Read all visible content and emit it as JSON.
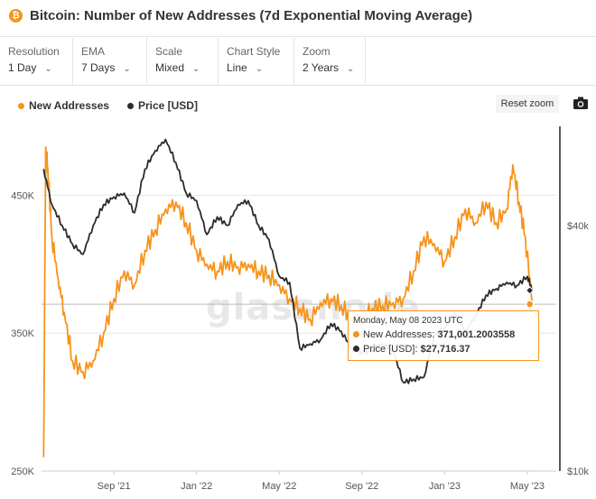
{
  "header": {
    "logo_glyph": "₿",
    "title": "Bitcoin: Number of New Addresses (7d Exponential Moving Average)"
  },
  "controls": [
    {
      "label": "Resolution",
      "value": "1 Day"
    },
    {
      "label": "EMA",
      "value": "7 Days"
    },
    {
      "label": "Scale",
      "value": "Mixed"
    },
    {
      "label": "Chart Style",
      "value": "Line"
    },
    {
      "label": "Zoom",
      "value": "2 Years"
    }
  ],
  "toolbar": {
    "reset_zoom": "Reset zoom",
    "camera_icon": "camera-icon"
  },
  "watermark": "glassnode",
  "colors": {
    "new_addresses": "#f7931a",
    "price": "#2b2b2b",
    "grid": "#e6e6e6",
    "tooltip_border": "#f7931a"
  },
  "tooltip": {
    "date": "Monday, May 08 2023 UTC",
    "rows": [
      {
        "label": "New Addresses:",
        "value": "371,001.2003558"
      },
      {
        "label": "Price [USD]:",
        "value": "$27,716.37"
      }
    ]
  },
  "chart_data": {
    "type": "line",
    "title": "Bitcoin: Number of New Addresses (7d Exponential Moving Average)",
    "legend_placement": "top-left",
    "grid": true,
    "x_ticks": [
      "Sep '21",
      "Jan '22",
      "May '22",
      "Sep '22",
      "Jan '23",
      "May '23"
    ],
    "x_tick_months": [
      3,
      7,
      11,
      15,
      19,
      23
    ],
    "xlim_months": [
      -0.5,
      24.4
    ],
    "y_left": {
      "ticks": [
        250000,
        350000,
        450000
      ],
      "tick_labels": [
        "250K",
        "350K",
        "450K"
      ],
      "ylim": [
        250000,
        500000
      ]
    },
    "y_right": {
      "ticks": [
        10000,
        40000
      ],
      "tick_labels": [
        "$10k",
        "$40k"
      ],
      "scale": "log",
      "ylim": [
        10000,
        70000
      ]
    },
    "crosshair_month": 23.25,
    "series": [
      {
        "name": "New Addresses",
        "axis": "left",
        "months": [
          -0.4,
          -0.3,
          -0.2,
          0,
          0.3,
          0.6,
          1.0,
          1.5,
          2.0,
          2.5,
          3.0,
          3.5,
          4.0,
          4.5,
          5.0,
          5.5,
          6.0,
          6.5,
          7.0,
          7.5,
          8.0,
          8.5,
          9.0,
          9.5,
          10.0,
          10.5,
          11.0,
          11.5,
          12.0,
          12.5,
          13.0,
          13.5,
          14.0,
          14.5,
          15.0,
          15.5,
          16.0,
          16.5,
          17.0,
          17.5,
          18.0,
          18.5,
          19.0,
          19.5,
          20.0,
          20.5,
          21.0,
          21.5,
          22.0,
          22.3,
          22.6,
          22.9,
          23.25
        ],
        "values": [
          260000,
          485000,
          470000,
          420000,
          390000,
          365000,
          330000,
          322000,
          330000,
          350000,
          375000,
          395000,
          385000,
          410000,
          425000,
          440000,
          445000,
          430000,
          410000,
          400000,
          395000,
          402000,
          398000,
          400000,
          395000,
          392000,
          385000,
          375000,
          368000,
          360000,
          372000,
          375000,
          370000,
          360000,
          362000,
          368000,
          370000,
          372000,
          375000,
          395000,
          420000,
          415000,
          402000,
          420000,
          440000,
          430000,
          445000,
          430000,
          440000,
          472000,
          445000,
          420000,
          371001
        ]
      },
      {
        "name": "Price [USD]",
        "axis": "right",
        "months": [
          -0.4,
          0,
          0.5,
          1.0,
          1.5,
          2.0,
          2.5,
          3.0,
          3.5,
          4.0,
          4.5,
          5.0,
          5.5,
          6.0,
          6.5,
          7.0,
          7.5,
          8.0,
          8.5,
          9.0,
          9.5,
          10.0,
          10.5,
          11.0,
          11.5,
          12.0,
          12.5,
          13.0,
          13.5,
          14.0,
          14.5,
          15.0,
          15.5,
          16.0,
          16.5,
          17.0,
          17.5,
          18.0,
          18.5,
          19.0,
          19.5,
          20.0,
          20.5,
          21.0,
          21.5,
          22.0,
          22.5,
          23.0,
          23.25
        ],
        "values": [
          55000,
          45000,
          40000,
          36000,
          34000,
          40000,
          45000,
          47000,
          48000,
          43000,
          55000,
          61000,
          65000,
          57000,
          48000,
          46000,
          38000,
          42000,
          40000,
          45000,
          46000,
          40000,
          37000,
          30000,
          29000,
          20000,
          20500,
          21000,
          23000,
          22000,
          20000,
          19500,
          19800,
          20500,
          19800,
          16500,
          16800,
          17000,
          21500,
          22500,
          24500,
          22000,
          24000,
          27000,
          28000,
          29000,
          28500,
          30000,
          27716.37
        ]
      }
    ]
  }
}
